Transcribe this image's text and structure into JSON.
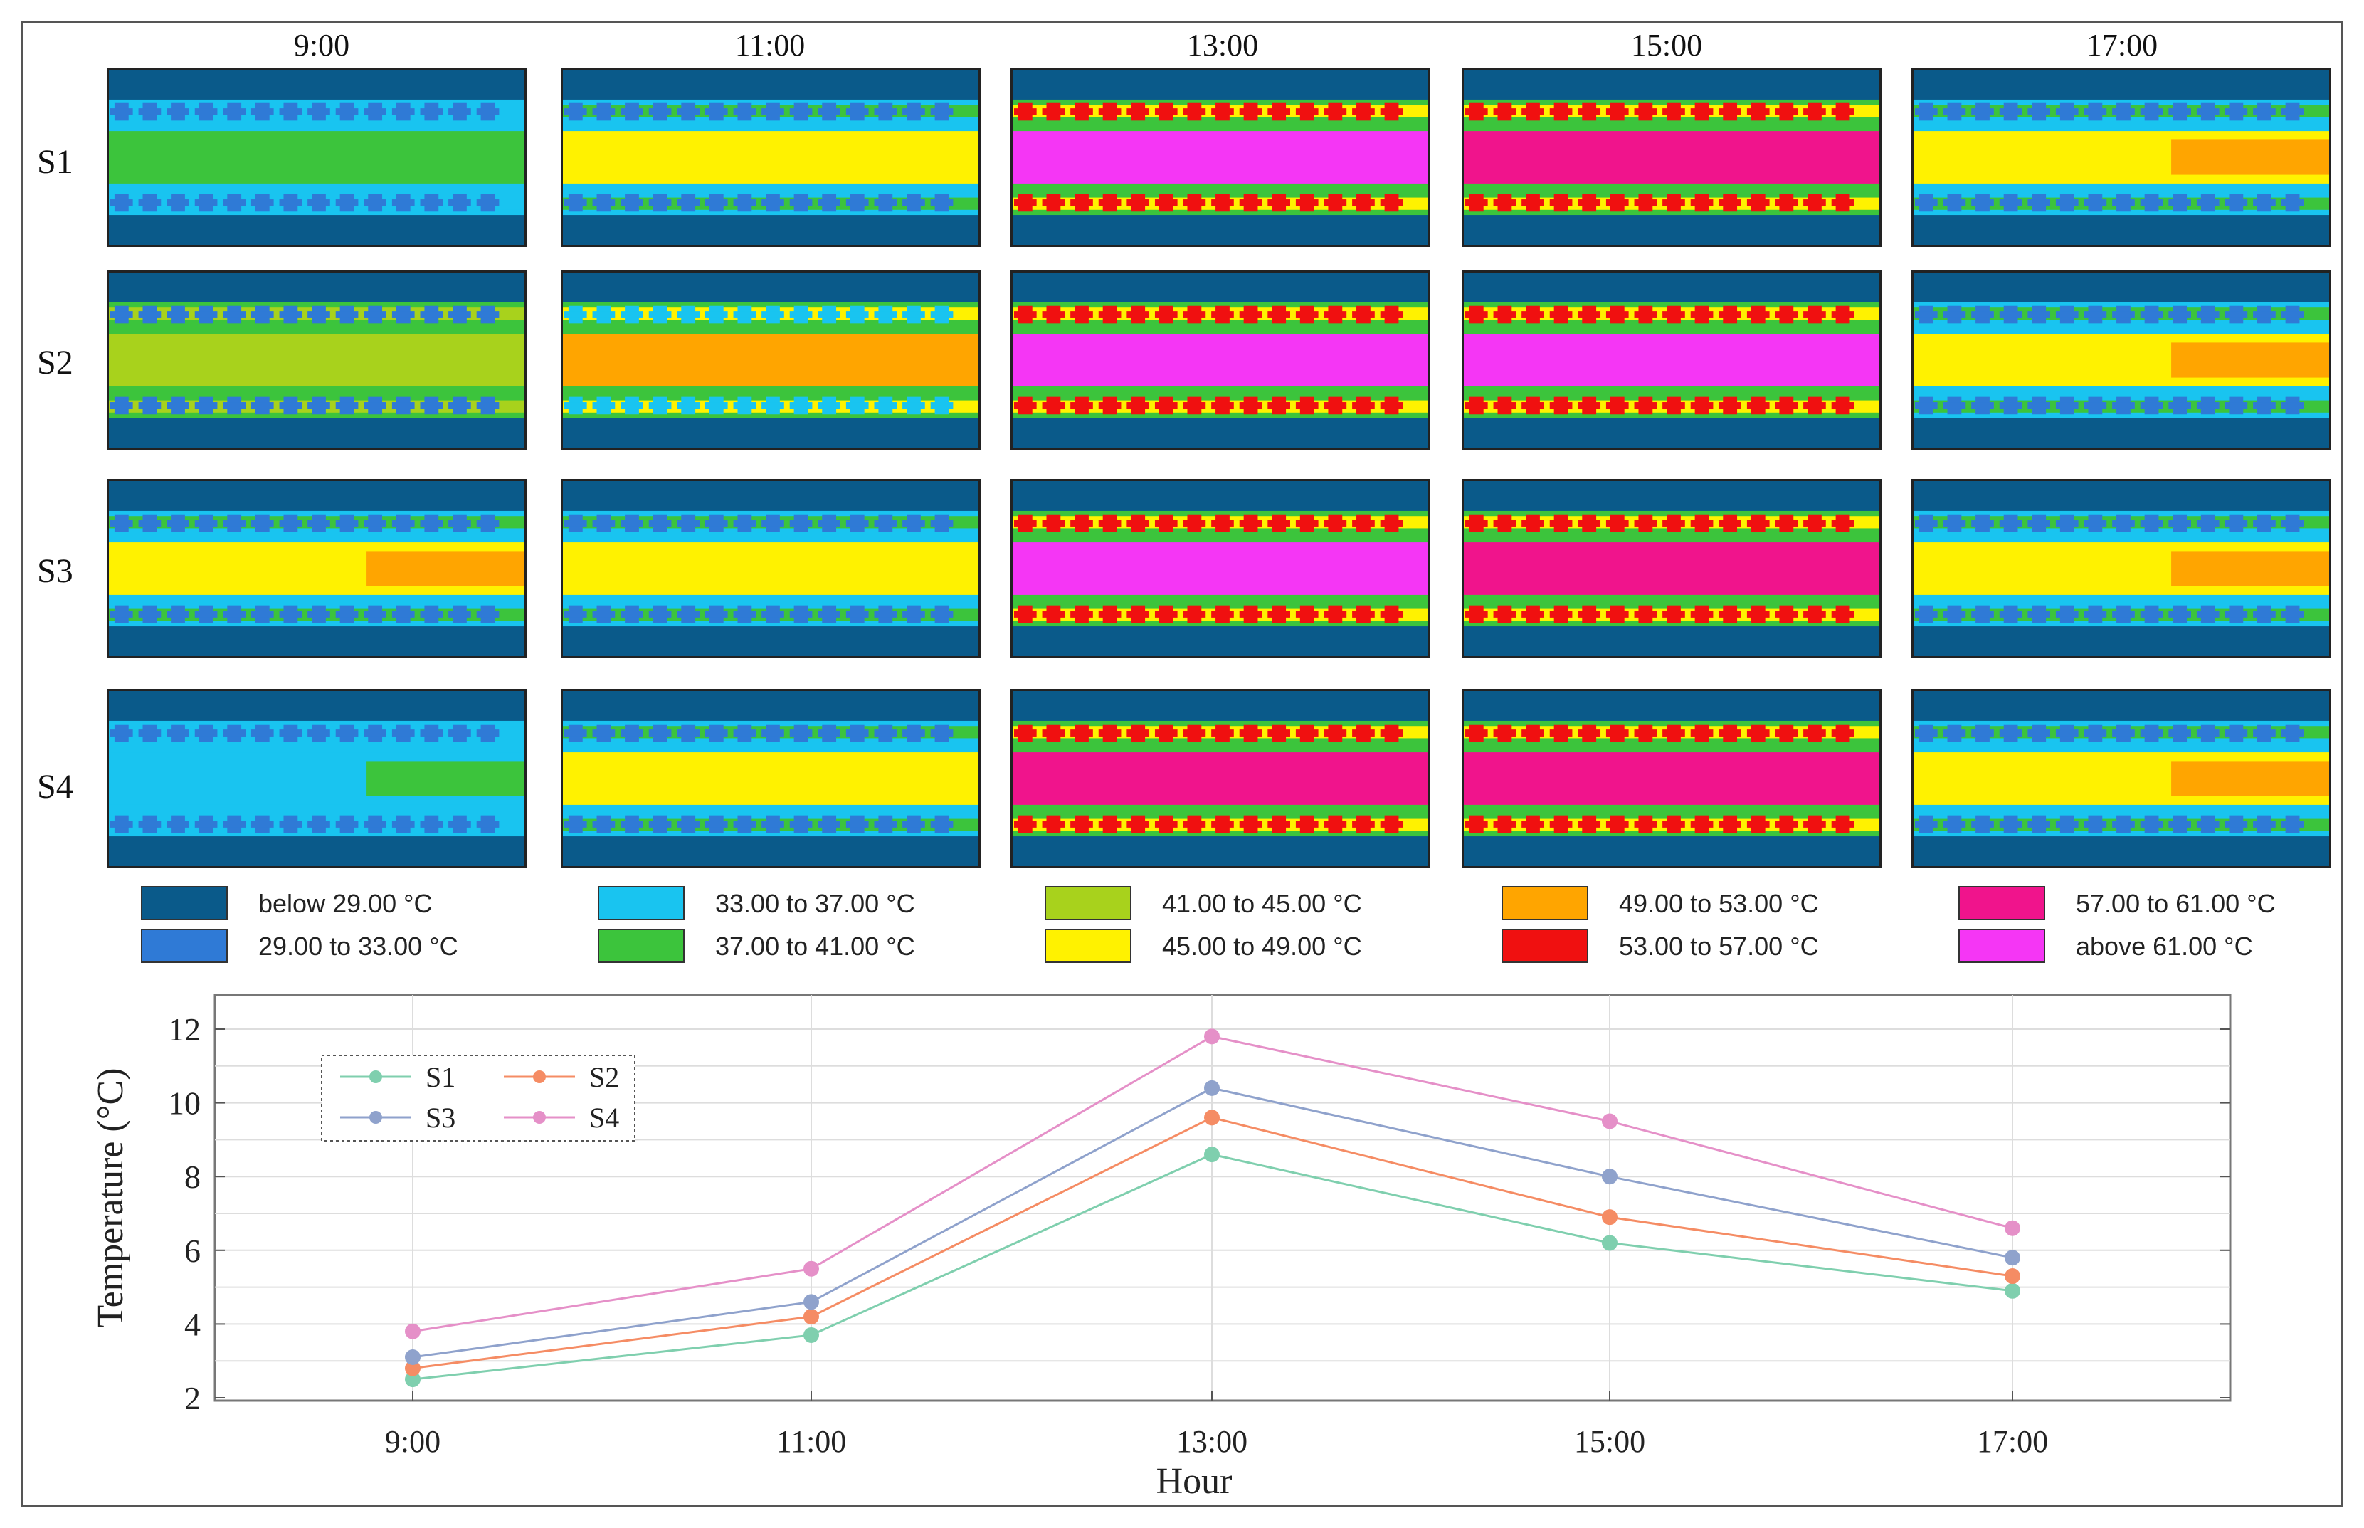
{
  "heatmap_grid": {
    "columns": [
      "9:00",
      "11:00",
      "13:00",
      "15:00",
      "17:00"
    ],
    "rows": [
      "S1",
      "S2",
      "S3",
      "S4"
    ],
    "panels": [
      [
        "green",
        "yellow",
        "magenta",
        "pink",
        "yellow-orange"
      ],
      [
        "olive",
        "orange",
        "magenta",
        "magenta",
        "yellow-orange"
      ],
      [
        "yellow-orange",
        "yellow",
        "magenta",
        "pink",
        "yellow-orange"
      ],
      [
        "cyan-green",
        "yellow",
        "pink",
        "pink",
        "yellow-orange"
      ]
    ]
  },
  "legend": [
    {
      "label": "below 29.00 °C",
      "color": "#0a5a8a"
    },
    {
      "label": "29.00 to 33.00 °C",
      "color": "#2f7ad6"
    },
    {
      "label": "33.00 to 37.00 °C",
      "color": "#19c4f0"
    },
    {
      "label": "37.00 to 41.00 °C",
      "color": "#3cc43c"
    },
    {
      "label": "41.00 to 45.00 °C",
      "color": "#a8d21c"
    },
    {
      "label": "45.00 to 49.00 °C",
      "color": "#fff200"
    },
    {
      "label": "49.00 to 53.00 °C",
      "color": "#ffa500"
    },
    {
      "label": "53.00 to 57.00 °C",
      "color": "#f01010"
    },
    {
      "label": "57.00 to 61.00 °C",
      "color": "#f0148c"
    },
    {
      "label": "above 61.00 °C",
      "color": "#f536f5"
    }
  ],
  "chart_data": {
    "type": "line",
    "categories": [
      "9:00",
      "11:00",
      "13:00",
      "15:00",
      "17:00"
    ],
    "series": [
      {
        "name": "S1",
        "values": [
          2.5,
          3.7,
          8.6,
          6.2,
          4.9
        ],
        "color": "#7fcfae"
      },
      {
        "name": "S2",
        "values": [
          2.8,
          4.2,
          9.6,
          6.9,
          5.3
        ],
        "color": "#f58c64"
      },
      {
        "name": "S3",
        "values": [
          3.1,
          4.6,
          10.4,
          8.0,
          5.8
        ],
        "color": "#8fa2cc"
      },
      {
        "name": "S4",
        "values": [
          3.8,
          5.5,
          11.8,
          9.5,
          6.6
        ],
        "color": "#e590c8"
      }
    ],
    "title": "",
    "xlabel": "Hour",
    "ylabel": "Temperature (°C)",
    "ylim": [
      2,
      12
    ],
    "yticks": [
      2,
      4,
      6,
      8,
      10,
      12
    ],
    "grid": true,
    "legend_position": "top-left"
  }
}
